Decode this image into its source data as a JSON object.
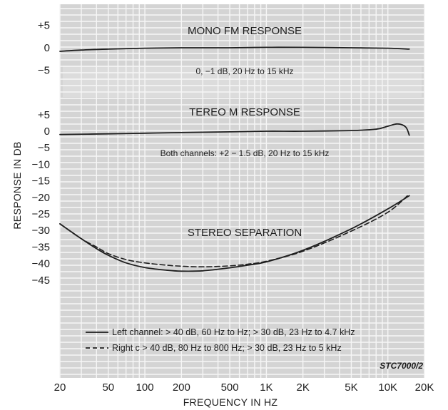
{
  "chart_data": {
    "type": "line",
    "xlabel": "FREQUENCY IN HZ",
    "ylabel": "RESPONSE IN DB",
    "x_scale": "log",
    "xlim": [
      20,
      20000
    ],
    "x_ticks": [
      {
        "value": 20,
        "label": "20"
      },
      {
        "value": 50,
        "label": "50"
      },
      {
        "value": 100,
        "label": "100"
      },
      {
        "value": 200,
        "label": "200"
      },
      {
        "value": 500,
        "label": "500"
      },
      {
        "value": 1000,
        "label": "1K"
      },
      {
        "value": 2000,
        "label": "2K"
      },
      {
        "value": 5000,
        "label": "5K"
      },
      {
        "value": 10000,
        "label": "10K"
      },
      {
        "value": 20000,
        "label": "20K"
      }
    ],
    "grid": true,
    "panels": [
      {
        "title": "MONO FM RESPONSE",
        "note": "0, −1 dB, 20 Hz to 15 kHz",
        "ylim": [
          -6,
          6
        ],
        "y_ticks": [
          {
            "value": 5,
            "label": "+5"
          },
          {
            "value": 0,
            "label": "0"
          },
          {
            "value": -5,
            "label": "−5"
          }
        ],
        "series": [
          {
            "style": "solid",
            "x": [
              20,
              30,
              50,
              100,
              200,
              500,
              1000,
              2000,
              5000,
              10000,
              15000
            ],
            "y": [
              -0.8,
              -0.5,
              -0.3,
              -0.1,
              0,
              0,
              0.1,
              0.1,
              0,
              -0.1,
              -0.3
            ]
          }
        ]
      },
      {
        "title": "TEREO M RESPONSE",
        "note": "Both channels: +2 − 1.5 dB, 20 Hz to 15 kHz",
        "ylim": [
          -50,
          7
        ],
        "y_ticks": [
          {
            "value": 5,
            "label": "+5"
          },
          {
            "value": 0,
            "label": "0"
          },
          {
            "value": -5,
            "label": "−5"
          },
          {
            "value": -10,
            "label": "−10"
          },
          {
            "value": -15,
            "label": "−15"
          },
          {
            "value": -20,
            "label": "−20"
          },
          {
            "value": -25,
            "label": "−25"
          },
          {
            "value": -30,
            "label": "−30"
          },
          {
            "value": -35,
            "label": "−35"
          },
          {
            "value": -40,
            "label": "−40"
          },
          {
            "value": -45,
            "label": "−45"
          }
        ],
        "series": [
          {
            "style": "solid",
            "x": [
              20,
              50,
              100,
              200,
              500,
              1000,
              2000,
              5000,
              8000,
              10000,
              12000,
              14000,
              15000
            ],
            "y": [
              -1,
              -0.8,
              -0.6,
              -0.4,
              -0.2,
              0,
              0,
              0.2,
              0.6,
              1.5,
              2.2,
              1.3,
              -1.2
            ]
          }
        ]
      },
      {
        "title": "STEREO SEPARATION",
        "series": [
          {
            "name": "Left channel",
            "style": "solid",
            "x": [
              20,
              30,
              40,
              50,
              70,
              100,
              150,
              200,
              300,
              500,
              700,
              1000,
              2000,
              5000,
              10000,
              15000
            ],
            "y": [
              -28,
              -32.5,
              -35.5,
              -37.5,
              -39.8,
              -41.2,
              -42,
              -42.3,
              -42.2,
              -41.3,
              -40.5,
              -39.5,
              -36,
              -29.5,
              -23.5,
              -19.5
            ]
          },
          {
            "name": "Right channel",
            "style": "dashed",
            "x": [
              20,
              30,
              40,
              50,
              70,
              100,
              150,
              200,
              300,
              500,
              700,
              1000,
              2000,
              5000,
              10000,
              15000
            ],
            "y": [
              -28,
              -32.5,
              -35,
              -37,
              -38.8,
              -39.8,
              -40.5,
              -40.8,
              -41,
              -40.7,
              -40.2,
              -39.3,
              -36.3,
              -30.2,
              -24.5,
              -19
            ]
          }
        ]
      }
    ],
    "legend": [
      {
        "style": "solid",
        "text": "Left channel: > 40 dB, 60 Hz to Hz; > 30 dB, 23 Hz to 4.7 kHz"
      },
      {
        "style": "dashed",
        "text": "Right c > 40 dB, 80 Hz to 800 Hz; > 30 dB, 23 Hz to 5 kHz"
      }
    ],
    "legend_placement": "bottom-center",
    "figure_code": "STC7000/2",
    "colors": {
      "background": "#ffffff",
      "panel": "#d4d4d4",
      "panel_light": "#dcdcdc",
      "grid": "#f6f6f6",
      "line": "#1e1e1e"
    }
  }
}
